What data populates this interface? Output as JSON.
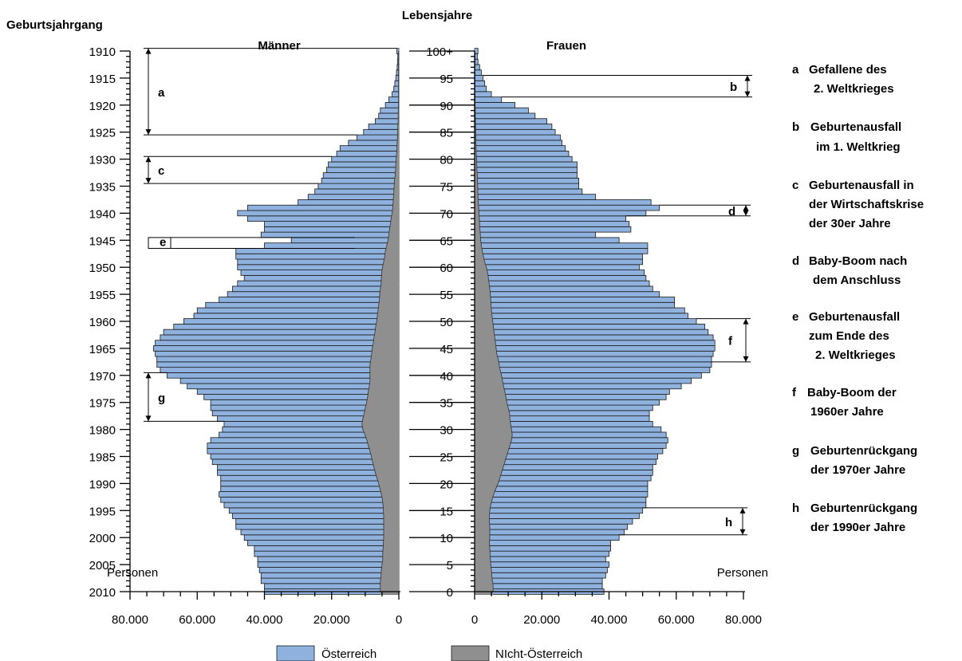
{
  "chart_data": {
    "type": "bar",
    "subtype": "population-pyramid",
    "titles": {
      "left_axis": "Geburtsjahrgang",
      "center_axis": "Lebensjahre",
      "men": "Männer",
      "women": "Frauen"
    },
    "birth_year_ticks": [
      "1910",
      "1915",
      "1920",
      "1925",
      "1930",
      "1935",
      "1940",
      "1945",
      "1950",
      "1955",
      "1960",
      "1965",
      "1970",
      "1975",
      "1980",
      "1985",
      "1990",
      "1995",
      "2000",
      "2005",
      "2010"
    ],
    "age_ticks": [
      "100+",
      "95",
      "90",
      "85",
      "80",
      "75",
      "70",
      "65",
      "60",
      "55",
      "50",
      "45",
      "40",
      "35",
      "30",
      "25",
      "20",
      "15",
      "10",
      "5",
      "0"
    ],
    "x_ticks_men": [
      "80.000",
      "60.000",
      "40.000",
      "20.000",
      "0"
    ],
    "x_ticks_women": [
      "0",
      "20.000",
      "40.000",
      "60.000",
      "80.000"
    ],
    "x_tick_values": [
      0,
      20000,
      40000,
      60000,
      80000
    ],
    "x_unit": "Personen",
    "xlim": [
      0,
      80000
    ],
    "ages": [
      0,
      1,
      2,
      3,
      4,
      5,
      6,
      7,
      8,
      9,
      10,
      11,
      12,
      13,
      14,
      15,
      16,
      17,
      18,
      19,
      20,
      21,
      22,
      23,
      24,
      25,
      26,
      27,
      28,
      29,
      30,
      31,
      32,
      33,
      34,
      35,
      36,
      37,
      38,
      39,
      40,
      41,
      42,
      43,
      44,
      45,
      46,
      47,
      48,
      49,
      50,
      51,
      52,
      53,
      54,
      55,
      56,
      57,
      58,
      59,
      60,
      61,
      62,
      63,
      64,
      65,
      66,
      67,
      68,
      69,
      70,
      71,
      72,
      73,
      74,
      75,
      76,
      77,
      78,
      79,
      80,
      81,
      82,
      83,
      84,
      85,
      86,
      87,
      88,
      89,
      90,
      91,
      92,
      93,
      94,
      95,
      96,
      97,
      98,
      99,
      100
    ],
    "men_total": [
      40000,
      40000,
      41000,
      41000,
      41500,
      42000,
      42000,
      43000,
      43000,
      45000,
      46000,
      47000,
      48500,
      48500,
      49500,
      50500,
      52000,
      53000,
      53500,
      53000,
      53000,
      53000,
      54000,
      54000,
      55500,
      56000,
      57000,
      57000,
      56000,
      53500,
      52500,
      52000,
      54000,
      55500,
      56000,
      56000,
      58000,
      60000,
      63000,
      65000,
      69000,
      71000,
      72000,
      72000,
      72500,
      73000,
      72500,
      71000,
      70000,
      67000,
      64000,
      61000,
      60000,
      57500,
      53500,
      51000,
      49500,
      48000,
      46000,
      47000,
      48000,
      48000,
      48500,
      48500,
      40000,
      32000,
      41000,
      40000,
      40000,
      45000,
      48000,
      45000,
      30000,
      27000,
      25000,
      24000,
      23000,
      22500,
      21500,
      21000,
      20000,
      18500,
      17500,
      15000,
      12500,
      10500,
      9000,
      7000,
      6000,
      5500,
      4000,
      3000,
      2000,
      1500,
      1200,
      900,
      700,
      500,
      400,
      300,
      600
    ],
    "men_foreign": [
      5500,
      5500,
      5500,
      5300,
      5200,
      5000,
      4800,
      4800,
      4700,
      4600,
      4500,
      4500,
      4500,
      4500,
      4500,
      4600,
      4700,
      4900,
      5200,
      5600,
      6000,
      6500,
      7000,
      7400,
      7800,
      8200,
      8600,
      9100,
      9500,
      10100,
      10700,
      11000,
      10700,
      10300,
      10000,
      9600,
      9300,
      9100,
      8800,
      8600,
      8600,
      8600,
      8600,
      8300,
      8100,
      7900,
      7600,
      7400,
      7100,
      6900,
      6600,
      6400,
      6200,
      6000,
      5800,
      5700,
      5500,
      5300,
      5200,
      5100,
      4900,
      4500,
      4200,
      4000,
      3600,
      3200,
      3000,
      2800,
      2500,
      2300,
      2000,
      1800,
      1700,
      1600,
      1500,
      1400,
      1300,
      1100,
      1000,
      900,
      800,
      700,
      600,
      500,
      400,
      300,
      300,
      200,
      200,
      200,
      100,
      100,
      100,
      100,
      100,
      100,
      100,
      100,
      100,
      100,
      100
    ],
    "women_total": [
      38500,
      38000,
      38000,
      39000,
      39500,
      40000,
      39000,
      40000,
      40500,
      40500,
      43000,
      44500,
      45500,
      47000,
      49000,
      50000,
      51000,
      51000,
      51500,
      51500,
      51500,
      52500,
      53000,
      53000,
      54000,
      54500,
      56000,
      57000,
      57500,
      57000,
      55500,
      53000,
      52000,
      52000,
      53000,
      55000,
      57000,
      58000,
      61500,
      64500,
      67500,
      70000,
      70500,
      70500,
      71000,
      71500,
      71500,
      71000,
      69500,
      68500,
      66000,
      63500,
      62500,
      59500,
      59500,
      55000,
      53000,
      52000,
      51000,
      50500,
      49000,
      50000,
      50000,
      51500,
      51500,
      43000,
      36000,
      46500,
      46000,
      45000,
      51000,
      55000,
      52500,
      36000,
      32000,
      31000,
      31000,
      30500,
      30500,
      30500,
      29000,
      28000,
      27000,
      26000,
      25500,
      24000,
      23000,
      21500,
      18000,
      16000,
      12000,
      8000,
      5000,
      3500,
      3000,
      2500,
      2000,
      1500,
      1000,
      800,
      1000
    ],
    "women_foreign": [
      5500,
      5500,
      5300,
      5100,
      5000,
      4800,
      4700,
      4600,
      4500,
      4400,
      4500,
      4500,
      4500,
      4400,
      4400,
      4500,
      4800,
      5200,
      5700,
      6300,
      7000,
      7500,
      8000,
      8500,
      9000,
      9500,
      10000,
      10500,
      11000,
      11200,
      11000,
      10700,
      10500,
      10400,
      10000,
      9600,
      9300,
      9000,
      8600,
      8300,
      8000,
      7600,
      7300,
      7000,
      6600,
      6400,
      6200,
      6000,
      5800,
      5600,
      5400,
      5200,
      5000,
      4900,
      4800,
      4700,
      4500,
      4300,
      4100,
      3900,
      3500,
      3000,
      2600,
      2300,
      2000,
      1800,
      1700,
      1600,
      1500,
      1400,
      1300,
      1200,
      1100,
      1000,
      950,
      900,
      850,
      800,
      700,
      650,
      600,
      500,
      450,
      400,
      350,
      300,
      300,
      250,
      200,
      200,
      150,
      150,
      100,
      100,
      100,
      100,
      100,
      100,
      100,
      100,
      100
    ],
    "annotations_men": [
      {
        "letter": "a",
        "age_from": 84,
        "age_to": 100
      },
      {
        "letter": "c",
        "age_from": 75,
        "age_to": 80
      },
      {
        "letter": "e",
        "age_from": 64,
        "age_to": 65
      },
      {
        "letter": "g",
        "age_from": 31,
        "age_to": 40
      }
    ],
    "annotations_women": [
      {
        "letter": "b",
        "age_from": 91,
        "age_to": 95
      },
      {
        "letter": "d",
        "age_from": 69,
        "age_to": 71
      },
      {
        "letter": "f",
        "age_from": 42,
        "age_to": 50
      },
      {
        "letter": "h",
        "age_from": 10,
        "age_to": 15
      }
    ],
    "legend_position": "bottom-center",
    "grid": false,
    "colors": {
      "oesterreich": "#8fb1dd",
      "nicht_oesterreich": "#8f8f8f"
    }
  },
  "header": {
    "left_axis_label": "Geburtsjahrgang",
    "center_axis_label": "Lebensjahre",
    "men_label": "Männer",
    "women_label": "Frauen"
  },
  "axis": {
    "unit_left": "Personen",
    "unit_right": "Personen"
  },
  "legend": {
    "oesterreich": "Österreich",
    "nicht_oesterreich": "NIcht-Österreich"
  },
  "bracket_letters": {
    "a": "a",
    "b": "b",
    "c": "c",
    "d": "d",
    "e": "e",
    "f": "f",
    "g": "g",
    "h": "h"
  },
  "notes": [
    {
      "letter": "a",
      "line1": "Gefallene des",
      "line2": "2. Weltkrieges"
    },
    {
      "letter": "b",
      "line1": "Geburtenausfall",
      "line2": "im 1. Weltkrieg"
    },
    {
      "letter": "c",
      "line1": "Geburtenausfall in",
      "line2": "der Wirtschaftskrise",
      "line3": "der 30er Jahre"
    },
    {
      "letter": "d",
      "line1": "Baby-Boom nach",
      "line2": "dem Anschluss"
    },
    {
      "letter": "e",
      "line1": "Geburtenausfall",
      "line2": "zum Ende des",
      "line3": "2. Weltkrieges"
    },
    {
      "letter": "f",
      "line1": "Baby-Boom der",
      "line2": "1960er Jahre"
    },
    {
      "letter": "g",
      "line1": "Geburtenrückgang",
      "line2": "der 1970er Jahre"
    },
    {
      "letter": "h",
      "line1": "Geburtenrückgang",
      "line2": "der 1990er Jahre"
    }
  ]
}
